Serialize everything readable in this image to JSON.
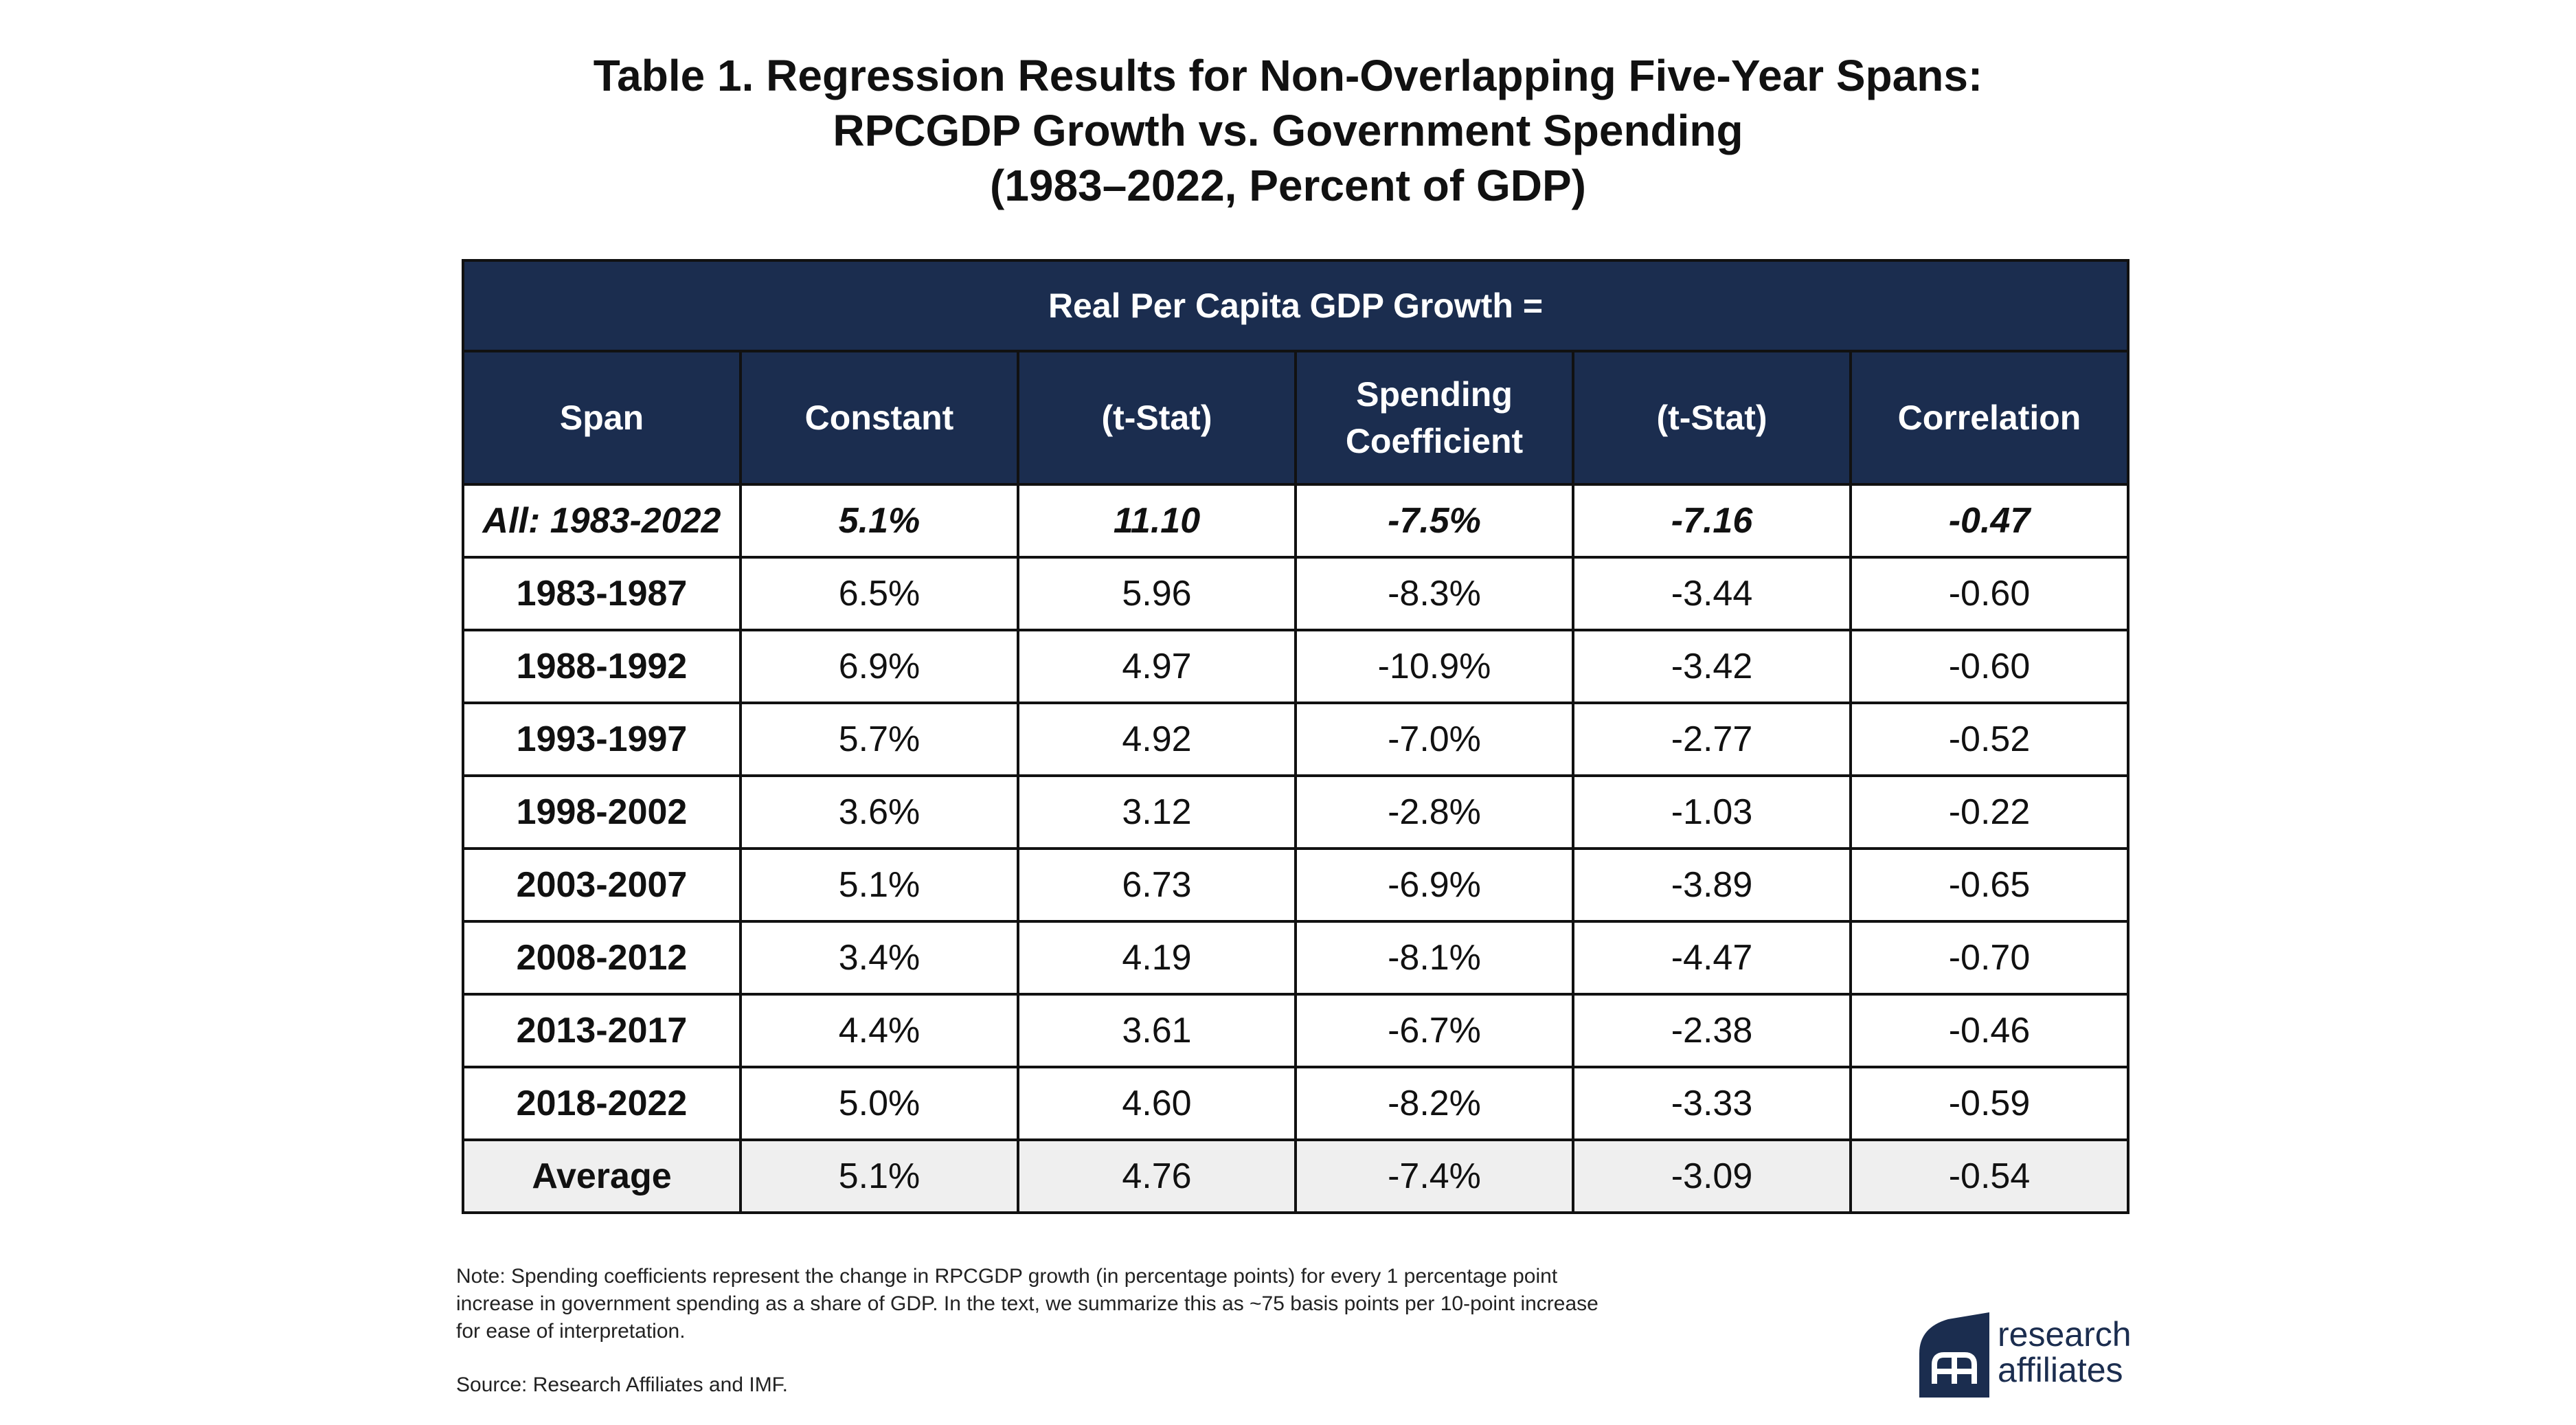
{
  "title": {
    "line1": "Table 1. Regression Results for Non-Overlapping Five-Year Spans:",
    "line2": "RPCGDP Growth vs. Government Spending",
    "line3": "(1983–2022, Percent of GDP)"
  },
  "table": {
    "super_header": "Real Per Capita GDP Growth =",
    "columns": [
      {
        "line1": "Span",
        "line2": ""
      },
      {
        "line1": "Constant",
        "line2": ""
      },
      {
        "line1": "(t-Stat)",
        "line2": ""
      },
      {
        "line1": "Spending",
        "line2": "Coefficient"
      },
      {
        "line1": "(t-Stat)",
        "line2": ""
      },
      {
        "line1": "Correlation",
        "line2": ""
      }
    ],
    "rows": [
      [
        "All: 1983-2022",
        "5.1%",
        "11.10",
        "-7.5%",
        "-7.16",
        "-0.47"
      ],
      [
        "1983-1987",
        "6.5%",
        "5.96",
        "-8.3%",
        "-3.44",
        "-0.60"
      ],
      [
        "1988-1992",
        "6.9%",
        "4.97",
        "-10.9%",
        "-3.42",
        "-0.60"
      ],
      [
        "1993-1997",
        "5.7%",
        "4.92",
        "-7.0%",
        "-2.77",
        "-0.52"
      ],
      [
        "1998-2002",
        "3.6%",
        "3.12",
        "-2.8%",
        "-1.03",
        "-0.22"
      ],
      [
        "2003-2007",
        "5.1%",
        "6.73",
        "-6.9%",
        "-3.89",
        "-0.65"
      ],
      [
        "2008-2012",
        "3.4%",
        "4.19",
        "-8.1%",
        "-4.47",
        "-0.70"
      ],
      [
        "2013-2017",
        "4.4%",
        "3.61",
        "-6.7%",
        "-2.38",
        "-0.46"
      ],
      [
        "2018-2022",
        "5.0%",
        "4.60",
        "-8.2%",
        "-3.33",
        "-0.59"
      ],
      [
        "Average",
        "5.1%",
        "4.76",
        "-7.4%",
        "-3.09",
        "-0.54"
      ]
    ]
  },
  "note": {
    "line1": "Note: Spending coefficients represent the change in RPCGDP growth (in percentage points) for every 1 percentage point",
    "line2": "increase in government spending as a share of GDP. In the text, we summarize this as ~75 basis points per 10-point increase",
    "line3": "for ease of interpretation."
  },
  "source": "Source: Research Affiliates and IMF.",
  "logo": {
    "line1": "research",
    "line2": "affiliates",
    "icon": "research-affiliates-logo-mark",
    "color": "#1b2d4f"
  },
  "colors": {
    "header_bg": "#1b2d4f",
    "header_text": "#ffffff",
    "average_row_bg": "#efefef"
  }
}
